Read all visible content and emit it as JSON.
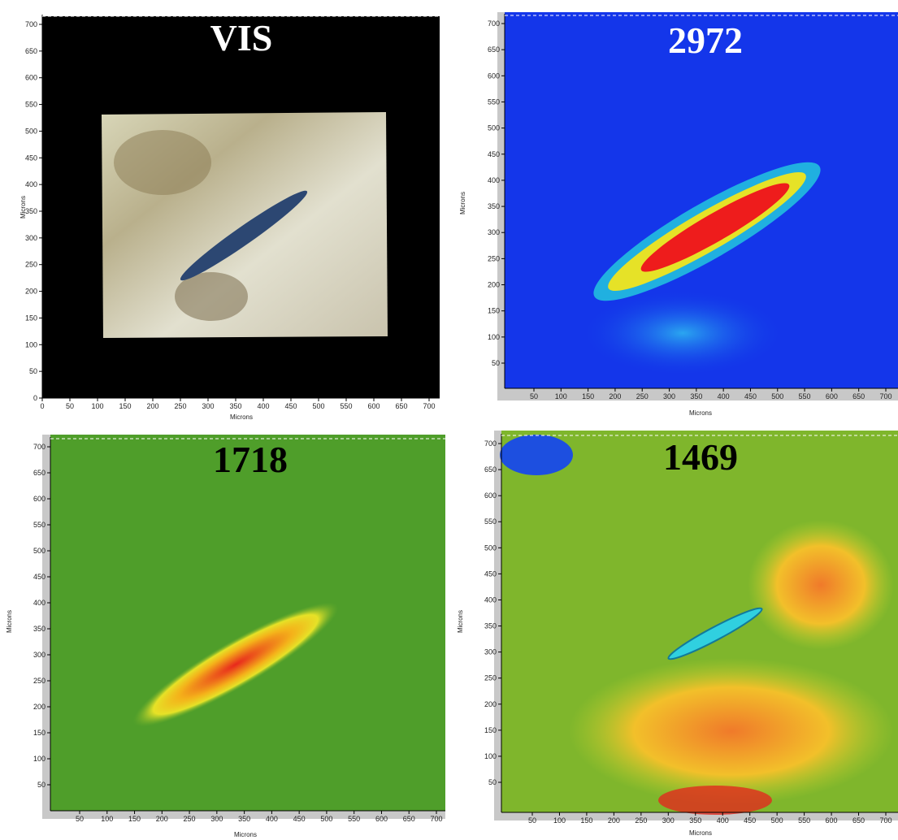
{
  "panels": [
    {
      "title": "VIS",
      "x_label": "Microns",
      "y_label": "Microns",
      "xticks": [
        0,
        50,
        100,
        150,
        200,
        250,
        300,
        350,
        400,
        450,
        500,
        550,
        600,
        650,
        700
      ],
      "yticks": [
        0,
        50,
        100,
        150,
        200,
        250,
        300,
        350,
        400,
        450,
        500,
        550,
        600,
        650,
        700
      ]
    },
    {
      "title": "2972",
      "x_label": "Microns",
      "y_label": "Microns",
      "xticks": [
        50,
        100,
        150,
        200,
        250,
        300,
        350,
        400,
        450,
        500,
        550,
        600,
        650,
        700
      ],
      "yticks": [
        50,
        100,
        150,
        200,
        250,
        300,
        350,
        400,
        450,
        500,
        550,
        600,
        650,
        700
      ]
    },
    {
      "title": "1718",
      "x_label": "Microns",
      "y_label": "Microns",
      "xticks": [
        50,
        100,
        150,
        200,
        250,
        300,
        350,
        400,
        450,
        500,
        550,
        600,
        650,
        700
      ],
      "yticks": [
        50,
        100,
        150,
        200,
        250,
        300,
        350,
        400,
        450,
        500,
        550,
        600,
        650,
        700
      ]
    },
    {
      "title": "1469",
      "x_label": "Microns",
      "y_label": "Microns",
      "xticks": [
        50,
        100,
        150,
        200,
        250,
        300,
        350,
        400,
        450,
        500,
        550,
        600,
        650,
        700
      ],
      "yticks": [
        50,
        100,
        150,
        200,
        250,
        300,
        350,
        400,
        450,
        500,
        550,
        600,
        650,
        700
      ]
    }
  ]
}
